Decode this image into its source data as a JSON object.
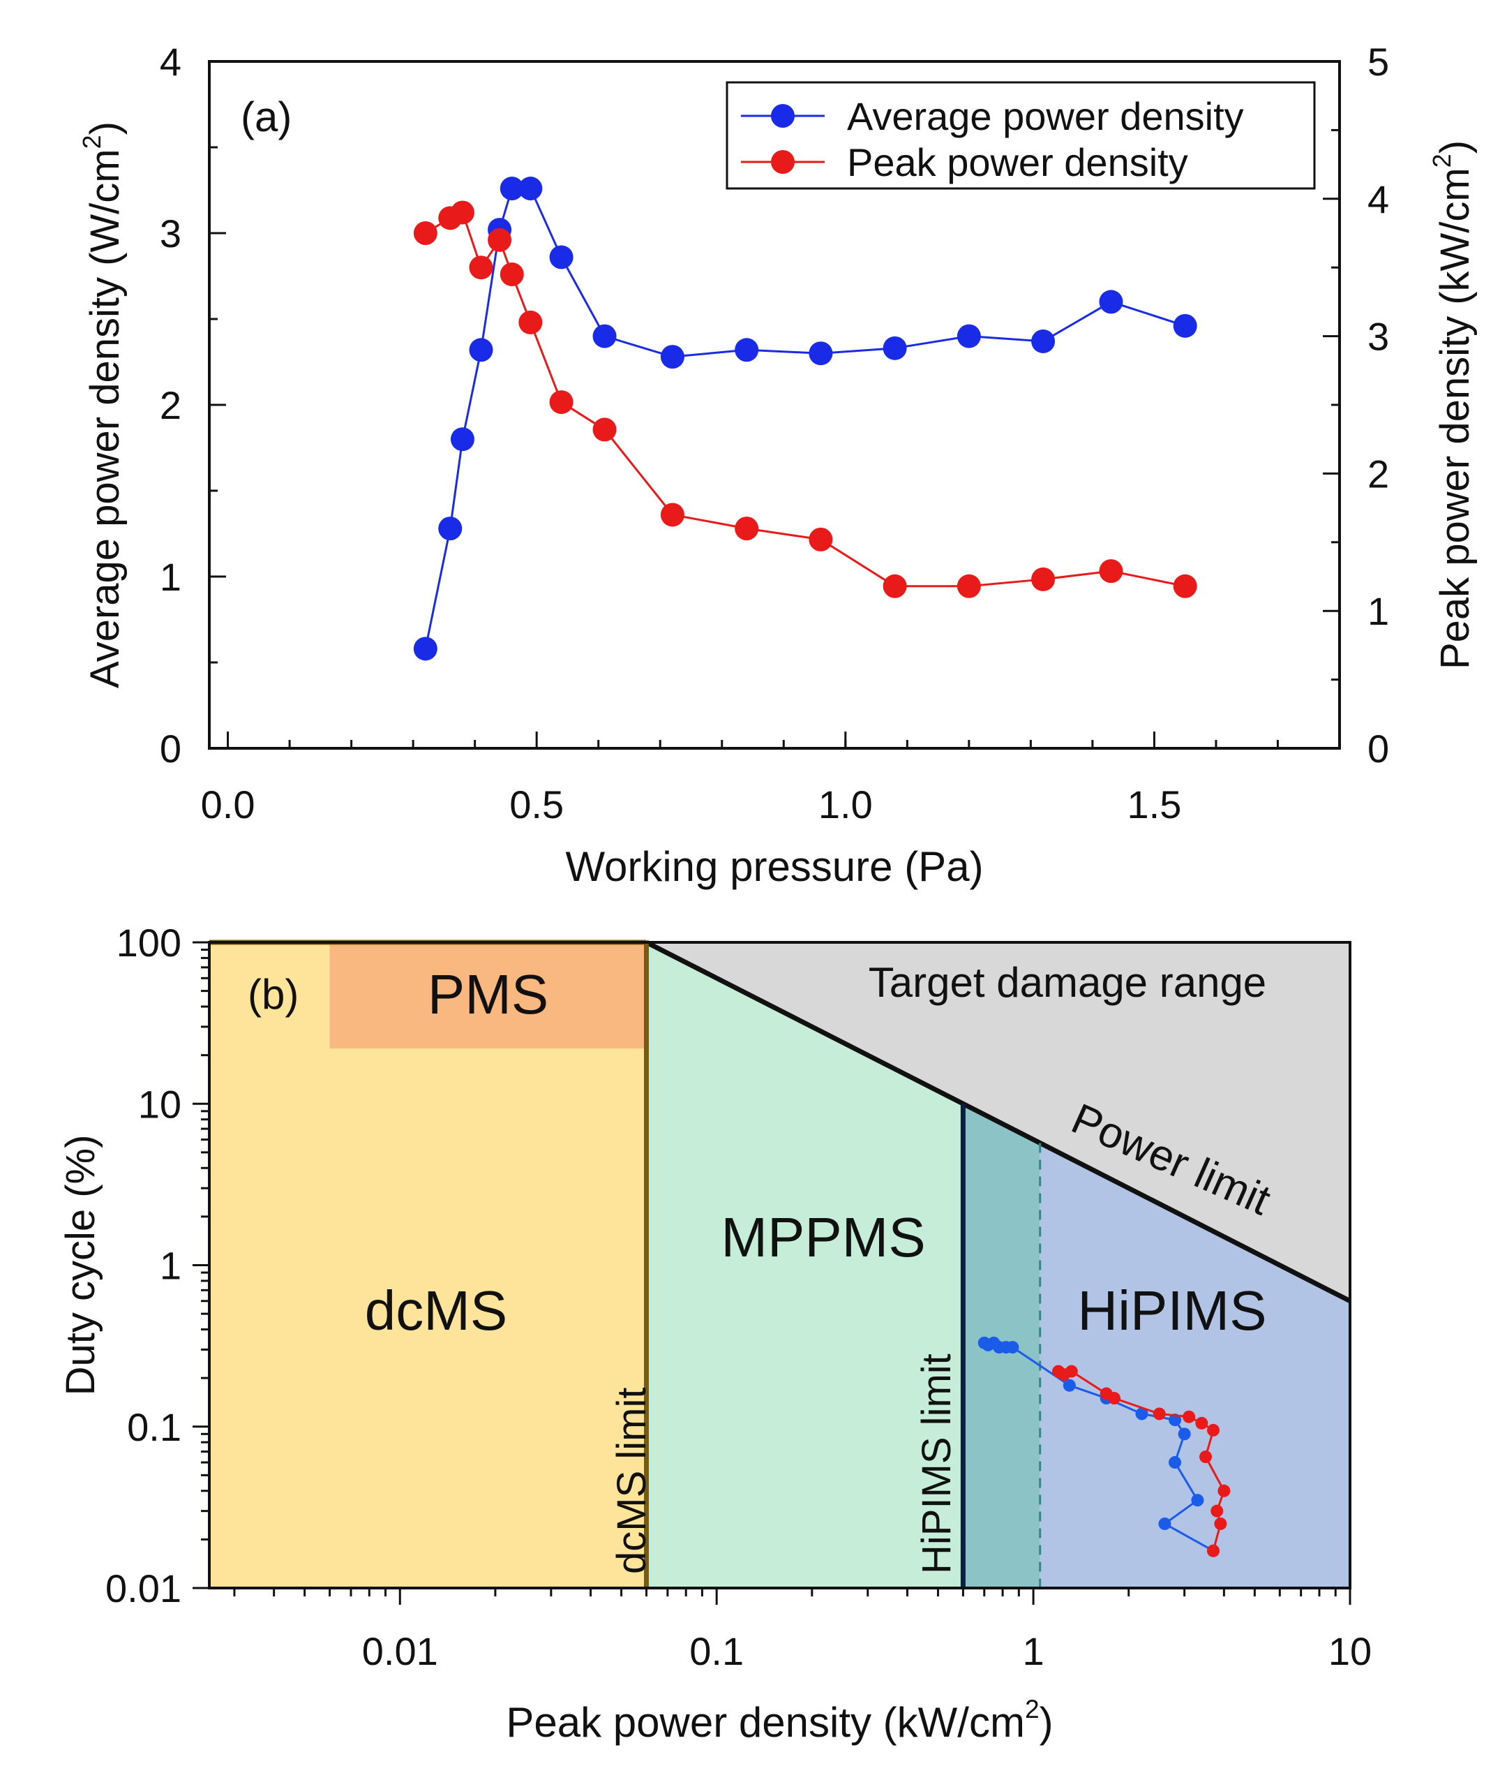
{
  "chart_data": [
    {
      "type": "line",
      "panel_label": "(a)",
      "xlabel": "Working pressure (Pa)",
      "ylabel": "Average power density (W/cm",
      "ylabel_sup": "2",
      "ylabel_close": ")",
      "y2label": "Peak power density (kW/cm",
      "y2label_sup": "2",
      "y2label_close": ")",
      "xlim": [
        -0.03,
        1.8
      ],
      "ylim": [
        0,
        4.0
      ],
      "y2lim": [
        0,
        5.0
      ],
      "xticks": [
        0.0,
        0.5,
        1.0,
        1.5
      ],
      "xtick_labels": [
        "0.0",
        "0.5",
        "1.0",
        "1.5"
      ],
      "yticks": [
        0,
        1,
        2,
        3,
        4
      ],
      "ytick_labels": [
        "0",
        "1",
        "2",
        "3",
        "4"
      ],
      "y2ticks": [
        0,
        1,
        2,
        3,
        4,
        5
      ],
      "y2tick_labels": [
        "0",
        "1",
        "2",
        "3",
        "4",
        "5"
      ],
      "series": [
        {
          "name": "Average power density",
          "axis": "left",
          "color": "#1a2be8",
          "x": [
            0.32,
            0.36,
            0.38,
            0.41,
            0.44,
            0.46,
            0.49,
            0.54,
            0.61,
            0.72,
            0.84,
            0.96,
            1.08,
            1.2,
            1.32,
            1.43,
            1.55
          ],
          "y": [
            0.58,
            1.28,
            1.8,
            2.32,
            3.02,
            3.26,
            3.26,
            2.86,
            2.4,
            2.28,
            2.32,
            2.3,
            2.33,
            2.4,
            2.37,
            2.6,
            2.46
          ]
        },
        {
          "name": "Peak power density",
          "axis": "right",
          "color": "#e81a1a",
          "x": [
            0.32,
            0.36,
            0.38,
            0.41,
            0.44,
            0.46,
            0.49,
            0.54,
            0.61,
            0.72,
            0.84,
            0.96,
            1.08,
            1.2,
            1.32,
            1.43,
            1.55
          ],
          "y": [
            3.75,
            3.86,
            3.9,
            3.5,
            3.7,
            3.45,
            3.1,
            2.52,
            2.32,
            1.7,
            1.6,
            1.52,
            1.18,
            1.18,
            1.23,
            1.29,
            1.18
          ]
        }
      ],
      "legend": "top-right"
    },
    {
      "type": "area",
      "panel_label": "(b)",
      "xlabel": "Peak power density (kW/cm",
      "xlabel_sup": "2",
      "xlabel_close": ")",
      "ylabel": "Duty cycle (%)",
      "xscale": "log",
      "yscale": "log",
      "xlim": [
        0.0025,
        10
      ],
      "ylim": [
        0.01,
        100
      ],
      "xticks": [
        0.01,
        0.1,
        1,
        10
      ],
      "xtick_labels": [
        "0.01",
        "0.1",
        "1",
        "10"
      ],
      "yticks": [
        0.01,
        0.1,
        1,
        10,
        100
      ],
      "ytick_labels": [
        "0.01",
        "0.1",
        "1",
        "10",
        "100"
      ],
      "dcms_limit": 0.06,
      "hipims_limit": 0.6,
      "dashed_line": 1.05,
      "pms_box": {
        "x": [
          0.006,
          0.06
        ],
        "y": [
          22,
          100
        ]
      },
      "power_limit_line": {
        "x": [
          0.06,
          10
        ],
        "y": [
          100,
          0.6
        ]
      },
      "labels": {
        "target_damage": "Target damage range",
        "power_limit": "Power limit",
        "pms": "PMS",
        "dcms": "dcMS",
        "mppms": "MPPMS",
        "hipims": "HiPIMS",
        "dcms_limit": "dcMS limit",
        "hipims_limit": "HiPIMS limit"
      },
      "colors": {
        "dcms": "#fde49a",
        "pms": "#f9b87f",
        "mppms": "#c5edd8",
        "overlap": "#8bc3c6",
        "hipims": "#b2c4e6",
        "damage": "#d8d8d8",
        "dcms_limit_line": "#7a5a10",
        "hipims_limit_line": "#0a1f44"
      },
      "series": [
        {
          "name": "Average power density",
          "color": "#1a5be8",
          "x": [
            0.7,
            0.72,
            0.75,
            0.78,
            0.82,
            0.86,
            1.3,
            1.7,
            2.2,
            2.8,
            3.0,
            2.8,
            3.3,
            2.6,
            3.7
          ],
          "y": [
            0.33,
            0.32,
            0.33,
            0.31,
            0.31,
            0.31,
            0.18,
            0.15,
            0.12,
            0.11,
            0.09,
            0.06,
            0.035,
            0.025,
            0.017
          ]
        },
        {
          "name": "Peak power density",
          "color": "#e81a1a",
          "x": [
            1.2,
            1.25,
            1.32,
            1.7,
            1.8,
            2.5,
            3.1,
            3.4,
            3.7,
            3.5,
            4.0,
            3.8,
            3.9,
            3.7
          ],
          "y": [
            0.22,
            0.21,
            0.22,
            0.16,
            0.15,
            0.12,
            0.115,
            0.105,
            0.095,
            0.065,
            0.04,
            0.03,
            0.025,
            0.017
          ]
        }
      ]
    }
  ]
}
